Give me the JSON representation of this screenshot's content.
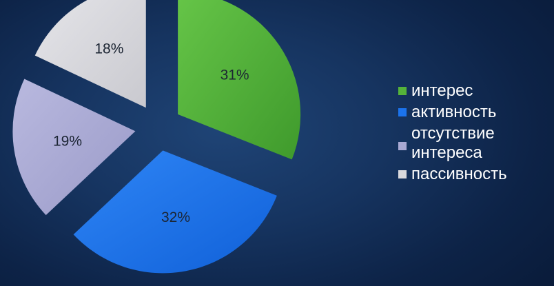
{
  "chart_data": {
    "type": "pie",
    "exploded": true,
    "slices": [
      {
        "label": "интерес",
        "value": 31,
        "display": "31%",
        "color": "#55b33a"
      },
      {
        "label": "активность",
        "value": 32,
        "display": "32%",
        "color": "#1b73ec"
      },
      {
        "label": "отсутствие\nинтереса",
        "value": 19,
        "display": "19%",
        "color": "#a9a9d3"
      },
      {
        "label": "пассивность",
        "value": 18,
        "display": "18%",
        "color": "#d9d9dd"
      }
    ],
    "legend_position": "right"
  }
}
